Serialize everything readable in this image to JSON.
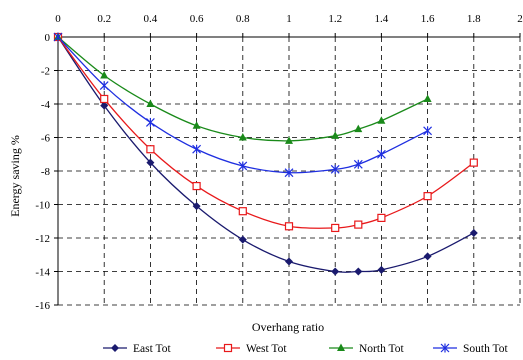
{
  "chart_data": {
    "type": "line",
    "title": "",
    "xlabel": "Overhang ratio",
    "ylabel": "Energy saving %",
    "xlim": [
      0,
      2
    ],
    "ylim": [
      -16,
      0
    ],
    "x_ticks": [
      "0",
      "0.2",
      "0.4",
      "0.6",
      "0.8",
      "1",
      "1.2",
      "1.4",
      "1.6",
      "1.8",
      "2"
    ],
    "y_ticks": [
      "0",
      "-2",
      "-4",
      "-6",
      "-8",
      "-10",
      "-12",
      "-14",
      "-16"
    ],
    "x_tick_values": [
      0,
      0.2,
      0.4,
      0.6,
      0.8,
      1.0,
      1.2,
      1.4,
      1.6,
      1.8,
      2.0
    ],
    "y_tick_values": [
      0,
      -2,
      -4,
      -6,
      -8,
      -10,
      -12,
      -14,
      -16
    ],
    "x_axis_position": "top",
    "grid": true,
    "legend_position": "bottom",
    "series": [
      {
        "name": "East Tot",
        "color": "#1a1a6e",
        "marker": "diamond",
        "x": [
          0,
          0.2,
          0.4,
          0.6,
          0.8,
          1.0,
          1.2,
          1.3,
          1.4,
          1.6,
          1.8
        ],
        "y": [
          0,
          -4.1,
          -7.5,
          -10.1,
          -12.1,
          -13.4,
          -14.0,
          -14.0,
          -13.9,
          -13.1,
          -11.7
        ]
      },
      {
        "name": "West Tot",
        "color": "#e8191b",
        "marker": "square-open",
        "x": [
          0,
          0.2,
          0.4,
          0.6,
          0.8,
          1.0,
          1.2,
          1.3,
          1.4,
          1.6,
          1.8
        ],
        "y": [
          0,
          -3.7,
          -6.7,
          -8.9,
          -10.4,
          -11.3,
          -11.4,
          -11.2,
          -10.8,
          -9.5,
          -7.5
        ]
      },
      {
        "name": "North Tot",
        "color": "#1a8a1a",
        "marker": "triangle",
        "x": [
          0,
          0.2,
          0.4,
          0.6,
          0.8,
          1.0,
          1.2,
          1.3,
          1.4,
          1.6
        ],
        "y": [
          0,
          -2.3,
          -4.0,
          -5.3,
          -6.0,
          -6.2,
          -5.9,
          -5.5,
          -5.0,
          -3.7
        ]
      },
      {
        "name": "South Tot",
        "color": "#1f2fe0",
        "marker": "asterisk",
        "x": [
          0,
          0.2,
          0.4,
          0.6,
          0.8,
          1.0,
          1.2,
          1.3,
          1.4,
          1.6
        ],
        "y": [
          0,
          -2.9,
          -5.1,
          -6.7,
          -7.7,
          -8.1,
          -7.9,
          -7.6,
          -7.0,
          -5.6
        ]
      }
    ]
  }
}
